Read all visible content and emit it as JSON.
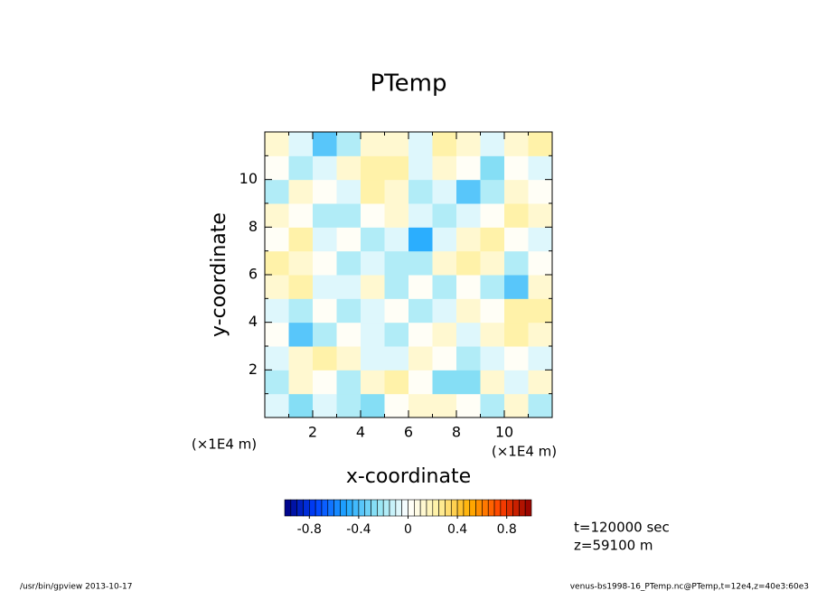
{
  "chart_data": {
    "type": "heatmap",
    "title": "PTemp",
    "xlabel": "x-coordinate",
    "ylabel": "y-coordinate",
    "x_unit": "(×1E4 m)",
    "y_unit": "(×1E4 m)",
    "xlim": [
      0,
      12
    ],
    "ylim": [
      0,
      12
    ],
    "xticks": [
      2,
      4,
      6,
      8,
      10
    ],
    "yticks": [
      2,
      4,
      6,
      8,
      10
    ],
    "xminor": [
      1,
      3,
      5,
      7,
      9,
      11
    ],
    "yminor": [
      1,
      3,
      5,
      7,
      9,
      11
    ],
    "x": [
      0.5,
      1.5,
      2.5,
      3.5,
      4.5,
      5.5,
      6.5,
      7.5,
      8.5,
      9.5,
      10.5,
      11.5
    ],
    "y": [
      0.5,
      1.5,
      2.5,
      3.5,
      4.5,
      5.5,
      6.5,
      7.5,
      8.5,
      9.5,
      10.5,
      11.5
    ],
    "z": [
      [
        -0.1,
        -0.3,
        -0.1,
        -0.2,
        -0.3,
        0,
        0.1,
        0.1,
        0,
        -0.2,
        0.1,
        -0.2
      ],
      [
        -0.2,
        0.1,
        0,
        -0.2,
        0.1,
        0.2,
        0,
        -0.3,
        -0.3,
        0.1,
        -0.1,
        0.1
      ],
      [
        -0.1,
        0.1,
        0.2,
        0.1,
        -0.1,
        -0.1,
        0.1,
        0,
        -0.2,
        -0.1,
        0,
        -0.1
      ],
      [
        0,
        -0.4,
        -0.2,
        0,
        -0.1,
        -0.2,
        0,
        0.1,
        -0.1,
        0.1,
        0.2,
        0.1
      ],
      [
        -0.1,
        -0.2,
        0,
        -0.2,
        -0.1,
        0,
        -0.2,
        -0.1,
        0.1,
        0,
        0.2,
        0.2
      ],
      [
        0.1,
        0.2,
        -0.1,
        -0.1,
        0.1,
        -0.2,
        0,
        -0.2,
        0,
        -0.2,
        -0.4,
        0.1
      ],
      [
        0.2,
        0.1,
        0,
        -0.2,
        -0.1,
        -0.2,
        -0.2,
        0.1,
        0.2,
        0.1,
        -0.2,
        0
      ],
      [
        0,
        0.2,
        -0.1,
        0,
        -0.2,
        -0.1,
        -0.5,
        -0.1,
        0.1,
        0.2,
        0,
        -0.1
      ],
      [
        0.1,
        0,
        -0.2,
        -0.2,
        0,
        0.1,
        -0.1,
        -0.2,
        -0.1,
        0,
        0.2,
        0.1
      ],
      [
        -0.2,
        0.1,
        0,
        -0.1,
        0.2,
        0.1,
        -0.2,
        -0.1,
        -0.4,
        -0.2,
        0.1,
        0
      ],
      [
        0,
        -0.2,
        -0.1,
        0.1,
        0.2,
        0.2,
        -0.1,
        0.1,
        0,
        -0.3,
        0,
        -0.1
      ],
      [
        0.1,
        -0.1,
        -0.4,
        -0.2,
        0.1,
        0.1,
        -0.1,
        0.2,
        0.1,
        -0.1,
        0.1,
        0.2
      ]
    ],
    "colorbar": {
      "levels": [
        -1,
        -0.95,
        -0.9,
        -0.85,
        -0.8,
        -0.75,
        -0.7,
        -0.65,
        -0.6,
        -0.55,
        -0.5,
        -0.45,
        -0.4,
        -0.35,
        -0.3,
        -0.25,
        -0.2,
        -0.15,
        -0.1,
        -0.05,
        0,
        0.05,
        0.1,
        0.15,
        0.2,
        0.25,
        0.3,
        0.35,
        0.4,
        0.45,
        0.5,
        0.55,
        0.6,
        0.65,
        0.7,
        0.75,
        0.8,
        0.85,
        0.9,
        0.95,
        1
      ],
      "ticks": [
        -0.8,
        -0.4,
        0,
        0.4,
        0.8
      ],
      "colormap": [
        "#000080",
        "#0040ff",
        "#20a8ff",
        "#90e4f4",
        "#ffffff",
        "#fff0a0",
        "#ffb000",
        "#ff4000",
        "#900000"
      ]
    },
    "annotations": [
      "t=120000 sec",
      "z=59100 m"
    ],
    "footer_left": "/usr/bin/gpview  2013-10-17",
    "footer_right": "venus-bs1998-16_PTemp.nc@PTemp,t=12e4,z=40e3:60e3"
  }
}
